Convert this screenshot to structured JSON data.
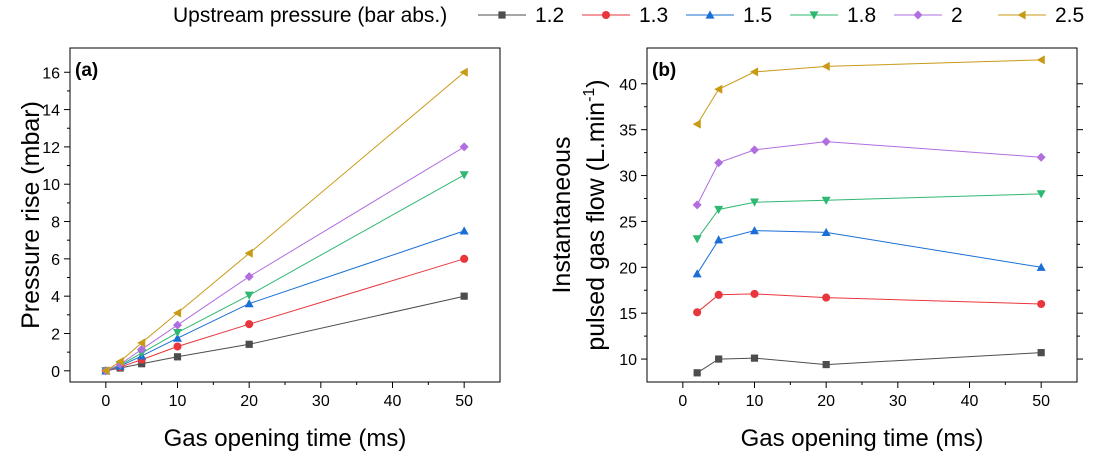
{
  "legend": {
    "title": "Upstream pressure (bar abs.)",
    "placement": "top",
    "entries": [
      {
        "label": "1.2",
        "color": "#4d4d4d",
        "marker": "square"
      },
      {
        "label": "1.3",
        "color": "#e8363c",
        "marker": "circle"
      },
      {
        "label": "1.5",
        "color": "#1a6fd6",
        "marker": "triangle-up"
      },
      {
        "label": "1.8",
        "color": "#2eb872",
        "marker": "triangle-down"
      },
      {
        "label": "2",
        "color": "#b06ee0",
        "marker": "diamond"
      },
      {
        "label": "2.5",
        "color": "#c89a16",
        "marker": "triangle-left"
      }
    ]
  },
  "chart_data": [
    {
      "type": "line",
      "panel_label": "(a)",
      "xlabel": "Gas opening time (ms)",
      "ylabel": "Pressure rise (mbar)",
      "xlim": [
        -5,
        55
      ],
      "ylim": [
        -0.6,
        17.3
      ],
      "xticks": [
        0,
        10,
        20,
        30,
        40,
        50
      ],
      "yticks": [
        0,
        2,
        4,
        6,
        8,
        10,
        12,
        14,
        16
      ],
      "grid": false,
      "series": [
        {
          "name": "1.2",
          "x": [
            0,
            2,
            5,
            10,
            20,
            50
          ],
          "y": [
            0,
            0.15,
            0.38,
            0.75,
            1.42,
            4.0
          ]
        },
        {
          "name": "1.3",
          "x": [
            0,
            2,
            5,
            10,
            20,
            50
          ],
          "y": [
            0,
            0.2,
            0.6,
            1.3,
            2.5,
            6.0
          ]
        },
        {
          "name": "1.5",
          "x": [
            0,
            2,
            5,
            10,
            20,
            50
          ],
          "y": [
            0,
            0.25,
            0.8,
            1.75,
            3.6,
            7.5
          ]
        },
        {
          "name": "1.8",
          "x": [
            0,
            2,
            5,
            10,
            20,
            50
          ],
          "y": [
            0,
            0.3,
            0.95,
            2.05,
            4.05,
            10.5
          ]
        },
        {
          "name": "2",
          "x": [
            0,
            2,
            5,
            10,
            20,
            50
          ],
          "y": [
            0,
            0.35,
            1.15,
            2.45,
            5.05,
            12.0
          ]
        },
        {
          "name": "2.5",
          "x": [
            0,
            2,
            5,
            10,
            20,
            50
          ],
          "y": [
            0,
            0.5,
            1.5,
            3.1,
            6.3,
            16.0
          ]
        }
      ]
    },
    {
      "type": "line",
      "panel_label": "(b)",
      "xlabel": "Gas opening time (ms)",
      "ylabel_lines": [
        "Instantaneous",
        "pulsed gas flow (L.min",
        "-1",
        ")"
      ],
      "xlim": [
        -5,
        55
      ],
      "ylim": [
        7.5,
        43.9
      ],
      "xticks": [
        0,
        10,
        20,
        30,
        40,
        50
      ],
      "yticks": [
        10,
        15,
        20,
        25,
        30,
        35,
        40
      ],
      "grid": false,
      "series": [
        {
          "name": "1.2",
          "x": [
            2,
            5,
            10,
            20,
            50
          ],
          "y": [
            8.5,
            10.0,
            10.1,
            9.4,
            10.7
          ]
        },
        {
          "name": "1.3",
          "x": [
            2,
            5,
            10,
            20,
            50
          ],
          "y": [
            15.1,
            17.0,
            17.1,
            16.7,
            16.0
          ]
        },
        {
          "name": "1.5",
          "x": [
            2,
            5,
            10,
            20,
            50
          ],
          "y": [
            19.3,
            23.0,
            24.0,
            23.8,
            20.0
          ]
        },
        {
          "name": "1.8",
          "x": [
            2,
            5,
            10,
            20,
            50
          ],
          "y": [
            23.1,
            26.3,
            27.1,
            27.3,
            28.0
          ]
        },
        {
          "name": "2",
          "x": [
            2,
            5,
            10,
            20,
            50
          ],
          "y": [
            26.8,
            31.4,
            32.8,
            33.7,
            32.0
          ]
        },
        {
          "name": "2.5",
          "x": [
            2,
            5,
            10,
            20,
            50
          ],
          "y": [
            35.6,
            39.4,
            41.3,
            41.9,
            42.6
          ]
        }
      ]
    }
  ]
}
